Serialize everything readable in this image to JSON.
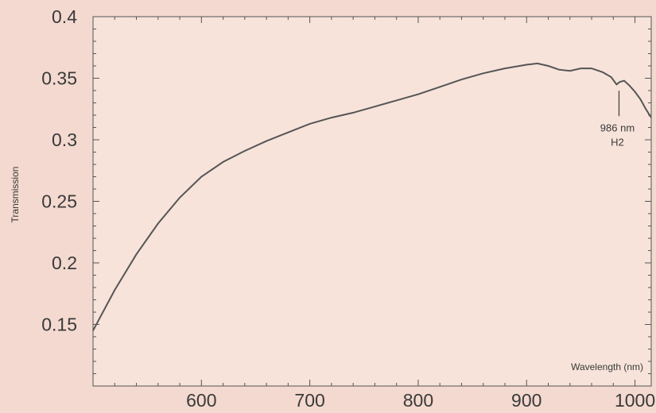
{
  "chart_data": {
    "type": "line",
    "title": "",
    "xlabel": "Wavelength (nm)",
    "ylabel": "Transmission",
    "xlim": [
      500,
      1015
    ],
    "ylim": [
      0.1,
      0.4
    ],
    "x_ticks": [
      600,
      700,
      800,
      900,
      1000
    ],
    "x_tick_labels": [
      "600",
      "700",
      "800",
      "900",
      "1000"
    ],
    "y_ticks": [
      0.15,
      0.2,
      0.25,
      0.3,
      0.35,
      0.4
    ],
    "y_tick_labels": [
      "0.15",
      "0.2",
      "0.25",
      "0.3",
      "0.35",
      "0.4"
    ],
    "grid": false,
    "colors": {
      "background": "#f3d9cf",
      "line": "#555555"
    },
    "series": [
      {
        "x": [
          500,
          520,
          540,
          560,
          580,
          600,
          620,
          640,
          660,
          680,
          700,
          720,
          740,
          760,
          780,
          800,
          820,
          840,
          860,
          880,
          900,
          910,
          920,
          930,
          940,
          950,
          960,
          970,
          978,
          983,
          986,
          990,
          995,
          1000,
          1005,
          1010,
          1015
        ],
        "y": [
          0.145,
          0.178,
          0.207,
          0.232,
          0.253,
          0.27,
          0.282,
          0.291,
          0.299,
          0.306,
          0.313,
          0.318,
          0.322,
          0.327,
          0.332,
          0.337,
          0.343,
          0.349,
          0.354,
          0.358,
          0.361,
          0.362,
          0.36,
          0.357,
          0.356,
          0.358,
          0.358,
          0.355,
          0.351,
          0.345,
          0.347,
          0.348,
          0.344,
          0.339,
          0.333,
          0.325,
          0.318
        ]
      }
    ],
    "annotations": [
      {
        "x": 986,
        "y": 0.345,
        "label_line1": "986 nm",
        "label_line2": "H2"
      }
    ]
  }
}
